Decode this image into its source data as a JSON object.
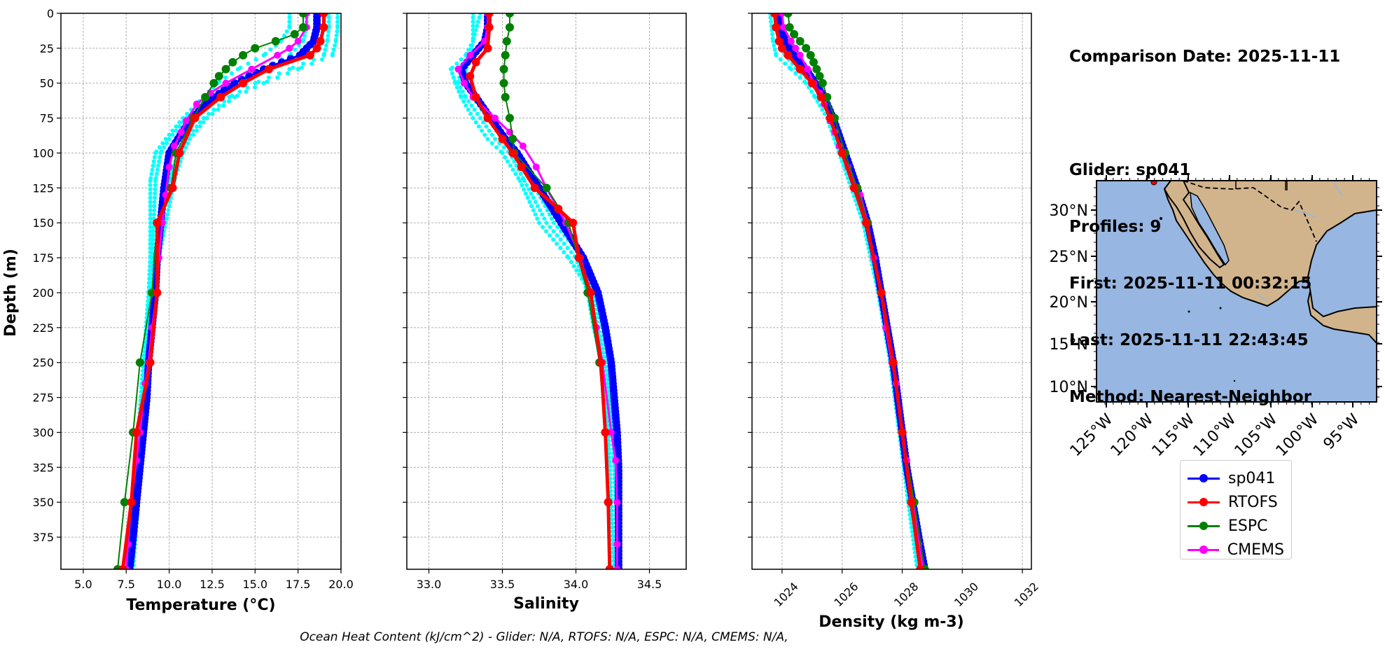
{
  "info": {
    "comparison": "Comparison Date: 2025-11-11",
    "glider": "Glider: sp041",
    "profiles": "Profiles: 9",
    "first": "First: 2025-11-11 00:32:15",
    "last": "Last: 2025-11-11 22:43:45",
    "method": "Method: Nearest-Neighbor"
  },
  "footer": "Ocean Heat Content (kJ/cm^2) - Glider: N/A,  RTOFS: N/A,  ESPC: N/A,  CMEMS: N/A,",
  "legend": [
    {
      "label": "sp041",
      "color": "#0000ff"
    },
    {
      "label": "RTOFS",
      "color": "#ff0000"
    },
    {
      "label": "ESPC",
      "color": "#008000"
    },
    {
      "label": "CMEMS",
      "color": "#ff00ff"
    }
  ],
  "raw_color": "#00ffff",
  "chart_data": [
    {
      "type": "line",
      "xlabel": "Temperature (°C)",
      "ylabel": "Depth (m)",
      "xlim": [
        3.7,
        20.0
      ],
      "ylim": [
        0,
        398
      ],
      "y_inverted": true,
      "x_ticks": [
        5.0,
        7.5,
        10.0,
        12.5,
        15.0,
        17.5,
        20.0
      ],
      "x_tick_labels": [
        "5.0",
        "7.5",
        "10.0",
        "12.5",
        "15.0",
        "17.5",
        "20.0"
      ],
      "y_ticks": [
        0,
        25,
        50,
        75,
        100,
        125,
        150,
        175,
        200,
        225,
        250,
        275,
        300,
        325,
        350,
        375
      ],
      "grid": true,
      "raw_profiles": [
        {
          "depth": [
            0,
            10,
            20,
            30,
            40,
            50,
            60,
            75,
            90,
            100,
            120,
            150,
            175,
            200,
            250,
            300,
            350,
            398
          ],
          "values": [
            19.3,
            19.3,
            19.2,
            19.0,
            17.0,
            15.0,
            13.5,
            12.0,
            11.0,
            10.5,
            10.0,
            9.5,
            9.2,
            9.0,
            8.7,
            8.4,
            8.0,
            7.7
          ]
        },
        {
          "depth": [
            0,
            10,
            20,
            30,
            40,
            50,
            60,
            75,
            90,
            100,
            120,
            150,
            175,
            200,
            250,
            300,
            350,
            398
          ],
          "values": [
            19.8,
            19.8,
            19.7,
            19.5,
            17.5,
            15.5,
            13.8,
            12.2,
            11.2,
            10.8,
            10.3,
            9.8,
            9.4,
            9.1,
            8.8,
            8.5,
            8.2,
            7.9
          ]
        },
        {
          "depth": [
            0,
            10,
            20,
            30,
            40,
            50,
            60,
            75,
            90,
            100,
            120,
            150,
            175,
            200,
            250,
            300,
            350,
            398
          ],
          "values": [
            18.0,
            18.0,
            17.8,
            17.0,
            15.5,
            13.8,
            12.5,
            11.0,
            10.0,
            9.5,
            9.2,
            9.1,
            9.0,
            8.9,
            8.6,
            8.3,
            8.0,
            7.7
          ]
        },
        {
          "depth": [
            0,
            10,
            20,
            30,
            40,
            50,
            60,
            75,
            90,
            100,
            120,
            150,
            175,
            200,
            250,
            300,
            350,
            398
          ],
          "values": [
            17.0,
            17.0,
            16.5,
            15.5,
            14.0,
            12.8,
            12.0,
            10.8,
            9.8,
            9.2,
            8.9,
            8.9,
            8.9,
            8.8,
            8.5,
            8.2,
            7.9,
            7.6
          ]
        }
      ],
      "series": [
        {
          "name": "sp041",
          "color": "#0000ff",
          "depth": [
            0,
            10,
            20,
            30,
            40,
            50,
            60,
            75,
            90,
            100,
            125,
            150,
            175,
            200,
            225,
            250,
            275,
            300,
            325,
            350,
            375,
            398
          ],
          "values": [
            18.6,
            18.6,
            18.4,
            17.6,
            15.5,
            13.8,
            12.6,
            11.3,
            10.5,
            10.0,
            9.7,
            9.5,
            9.3,
            9.2,
            9.0,
            8.8,
            8.7,
            8.5,
            8.3,
            8.1,
            7.9,
            7.7
          ]
        },
        {
          "name": "RTOFS",
          "color": "#ff0000",
          "depth": [
            0,
            10,
            20,
            25,
            30,
            40,
            50,
            60,
            75,
            100,
            125,
            150,
            200,
            250,
            300,
            350,
            398
          ],
          "values": [
            19.0,
            19.0,
            18.8,
            18.6,
            18.2,
            15.8,
            14.3,
            13.0,
            11.5,
            10.6,
            10.2,
            9.3,
            9.3,
            8.9,
            8.1,
            7.8,
            7.3
          ]
        },
        {
          "name": "ESPC",
          "color": "#008000",
          "depth": [
            0,
            10,
            15,
            20,
            25,
            30,
            35,
            40,
            45,
            50,
            60,
            75,
            100,
            125,
            150,
            200,
            250,
            300,
            350,
            398
          ],
          "values": [
            17.8,
            17.8,
            17.3,
            16.2,
            15.0,
            14.3,
            13.7,
            13.3,
            12.9,
            12.6,
            12.1,
            11.4,
            10.4,
            10.1,
            9.3,
            9.0,
            8.3,
            7.9,
            7.4,
            7.0
          ]
        },
        {
          "name": "CMEMS",
          "color": "#ff00ff",
          "depth": [
            0,
            10,
            20,
            25,
            30,
            40,
            50,
            57,
            65,
            77,
            85,
            95,
            110,
            130,
            150,
            175,
            200,
            225,
            250,
            265,
            300,
            320,
            350,
            380,
            398
          ],
          "values": [
            18.0,
            18.0,
            17.5,
            17.0,
            16.3,
            14.8,
            13.3,
            12.4,
            11.6,
            11.0,
            10.7,
            10.3,
            10.0,
            9.8,
            9.6,
            9.4,
            9.3,
            9.0,
            8.8,
            8.6,
            8.3,
            8.1,
            7.8,
            7.6,
            7.5
          ]
        }
      ]
    },
    {
      "type": "line",
      "xlabel": "Salinity",
      "ylabel": "",
      "xlim": [
        32.85,
        34.75
      ],
      "ylim": [
        0,
        398
      ],
      "y_inverted": true,
      "x_ticks": [
        33.0,
        33.5,
        34.0,
        34.5
      ],
      "x_tick_labels": [
        "33.0",
        "33.5",
        "34.0",
        "34.5"
      ],
      "grid": true,
      "raw_profiles": [
        {
          "depth": [
            0,
            20,
            30,
            40,
            50,
            60,
            75,
            90,
            100,
            120,
            150,
            175,
            200,
            225,
            250,
            300,
            350,
            398
          ],
          "values": [
            33.35,
            33.3,
            33.25,
            33.15,
            33.18,
            33.22,
            33.3,
            33.4,
            33.5,
            33.62,
            33.75,
            33.95,
            34.1,
            34.15,
            34.2,
            34.25,
            34.27,
            34.28
          ]
        },
        {
          "depth": [
            0,
            20,
            30,
            40,
            50,
            60,
            75,
            90,
            100,
            120,
            150,
            175,
            200,
            225,
            250,
            300,
            350,
            398
          ],
          "values": [
            33.4,
            33.38,
            33.3,
            33.25,
            33.25,
            33.3,
            33.4,
            33.5,
            33.6,
            33.7,
            33.85,
            34.05,
            34.12,
            34.18,
            34.22,
            34.26,
            34.28,
            34.29
          ]
        },
        {
          "depth": [
            0,
            20,
            30,
            40,
            50,
            60,
            75,
            90,
            100,
            120,
            150,
            175,
            200,
            225,
            250,
            300,
            350,
            398
          ],
          "values": [
            33.3,
            33.3,
            33.28,
            33.22,
            33.2,
            33.25,
            33.35,
            33.45,
            33.55,
            33.65,
            33.8,
            34.0,
            34.08,
            34.12,
            34.18,
            34.22,
            34.24,
            34.26
          ]
        }
      ],
      "series": [
        {
          "name": "sp041",
          "color": "#0000ff",
          "depth": [
            0,
            10,
            20,
            30,
            40,
            50,
            60,
            75,
            90,
            100,
            125,
            150,
            175,
            200,
            225,
            250,
            275,
            300,
            325,
            350,
            375,
            398
          ],
          "values": [
            33.4,
            33.4,
            33.38,
            33.3,
            33.22,
            33.25,
            33.32,
            33.42,
            33.52,
            33.6,
            33.75,
            33.9,
            34.05,
            34.15,
            34.2,
            34.24,
            34.26,
            34.28,
            34.29,
            34.29,
            34.29,
            34.29
          ]
        },
        {
          "name": "RTOFS",
          "color": "#ff0000",
          "depth": [
            0,
            10,
            25,
            35,
            45,
            60,
            75,
            90,
            100,
            110,
            125,
            140,
            150,
            175,
            200,
            250,
            300,
            350,
            398
          ],
          "values": [
            33.41,
            33.41,
            33.4,
            33.32,
            33.28,
            33.32,
            33.4,
            33.5,
            33.57,
            33.63,
            33.72,
            33.88,
            33.98,
            34.02,
            34.1,
            34.17,
            34.2,
            34.22,
            34.23
          ]
        },
        {
          "name": "ESPC",
          "color": "#008000",
          "depth": [
            0,
            10,
            20,
            30,
            40,
            50,
            60,
            75,
            90,
            100,
            125,
            150,
            200,
            250,
            300,
            350,
            398
          ],
          "values": [
            33.55,
            33.55,
            33.53,
            33.52,
            33.51,
            33.51,
            33.52,
            33.55,
            33.57,
            33.58,
            33.8,
            33.95,
            34.08,
            34.16,
            34.2,
            34.22,
            34.23
          ]
        },
        {
          "name": "CMEMS",
          "color": "#ff00ff",
          "depth": [
            0,
            10,
            20,
            30,
            40,
            50,
            60,
            75,
            85,
            95,
            110,
            125,
            150,
            175,
            200,
            225,
            250,
            300,
            320,
            350,
            380,
            398
          ],
          "values": [
            33.4,
            33.4,
            33.38,
            33.28,
            33.2,
            33.24,
            33.3,
            33.45,
            33.55,
            33.64,
            33.73,
            33.8,
            33.93,
            34.03,
            34.1,
            34.14,
            34.18,
            34.24,
            34.27,
            34.28,
            34.28,
            34.28
          ]
        }
      ]
    },
    {
      "type": "line",
      "xlabel": "Density (kg m-3)",
      "ylabel": "",
      "xlim": [
        1023.0,
        1032.3
      ],
      "ylim": [
        0,
        398
      ],
      "y_inverted": true,
      "x_ticks": [
        1024,
        1026,
        1028,
        1030,
        1032
      ],
      "x_tick_labels": [
        "1024",
        "1026",
        "1028",
        "1030",
        "1032"
      ],
      "grid": true,
      "raw_profiles": [
        {
          "depth": [
            0,
            20,
            30,
            40,
            50,
            60,
            75,
            100,
            125,
            150,
            200,
            250,
            300,
            350,
            398
          ],
          "values": [
            1023.6,
            1023.7,
            1023.8,
            1024.3,
            1024.8,
            1025.1,
            1025.5,
            1025.9,
            1026.3,
            1026.7,
            1027.2,
            1027.6,
            1027.9,
            1028.2,
            1028.5
          ]
        },
        {
          "depth": [
            0,
            20,
            30,
            40,
            50,
            60,
            75,
            100,
            125,
            150,
            200,
            250,
            300,
            350,
            398
          ],
          "values": [
            1023.8,
            1023.9,
            1024.1,
            1024.5,
            1025.0,
            1025.3,
            1025.7,
            1026.1,
            1026.5,
            1026.8,
            1027.3,
            1027.7,
            1028.0,
            1028.3,
            1028.6
          ]
        }
      ],
      "series": [
        {
          "name": "sp041",
          "color": "#0000ff",
          "depth": [
            0,
            10,
            20,
            30,
            40,
            50,
            60,
            75,
            100,
            125,
            150,
            175,
            200,
            225,
            250,
            275,
            300,
            325,
            350,
            375,
            398
          ],
          "values": [
            1023.9,
            1023.95,
            1024.1,
            1024.4,
            1024.8,
            1025.1,
            1025.4,
            1025.7,
            1026.1,
            1026.5,
            1026.85,
            1027.1,
            1027.3,
            1027.5,
            1027.7,
            1027.85,
            1028.0,
            1028.15,
            1028.35,
            1028.55,
            1028.75
          ]
        },
        {
          "name": "RTOFS",
          "color": "#ff0000",
          "depth": [
            0,
            10,
            20,
            25,
            30,
            40,
            50,
            60,
            75,
            100,
            125,
            150,
            200,
            250,
            300,
            350,
            398
          ],
          "values": [
            1023.75,
            1023.8,
            1023.9,
            1024.0,
            1024.2,
            1024.6,
            1025.0,
            1025.3,
            1025.6,
            1026.0,
            1026.4,
            1026.8,
            1027.3,
            1027.7,
            1028.0,
            1028.3,
            1028.6
          ]
        },
        {
          "name": "ESPC",
          "color": "#008000",
          "depth": [
            0,
            10,
            15,
            20,
            25,
            30,
            35,
            40,
            45,
            50,
            60,
            75,
            100,
            125,
            150,
            200,
            250,
            300,
            350,
            398
          ],
          "values": [
            1024.2,
            1024.25,
            1024.4,
            1024.6,
            1024.8,
            1024.95,
            1025.05,
            1025.15,
            1025.25,
            1025.35,
            1025.5,
            1025.75,
            1026.1,
            1026.5,
            1026.85,
            1027.3,
            1027.7,
            1028.0,
            1028.4,
            1028.75
          ]
        },
        {
          "name": "CMEMS",
          "color": "#ff00ff",
          "depth": [
            0,
            10,
            20,
            25,
            30,
            40,
            50,
            57,
            65,
            77,
            85,
            95,
            110,
            130,
            150,
            175,
            200,
            225,
            250,
            265,
            300,
            320,
            350,
            380,
            398
          ],
          "values": [
            1024.0,
            1024.05,
            1024.3,
            1024.45,
            1024.6,
            1024.85,
            1025.05,
            1025.25,
            1025.4,
            1025.6,
            1025.75,
            1025.9,
            1026.2,
            1026.6,
            1026.85,
            1027.05,
            1027.3,
            1027.45,
            1027.65,
            1027.8,
            1028.0,
            1028.15,
            1028.35,
            1028.55,
            1028.7
          ]
        }
      ]
    },
    {
      "type": "map",
      "lon_ticks": [
        "125°W",
        "120°W",
        "115°W",
        "110°W",
        "105°W",
        "100°W",
        "95°W"
      ],
      "lat_ticks": [
        "30°N",
        "25°N",
        "20°N",
        "15°N",
        "10°N"
      ],
      "ocean_color": "#97b6e1",
      "land_color": "#d2b48c"
    }
  ]
}
